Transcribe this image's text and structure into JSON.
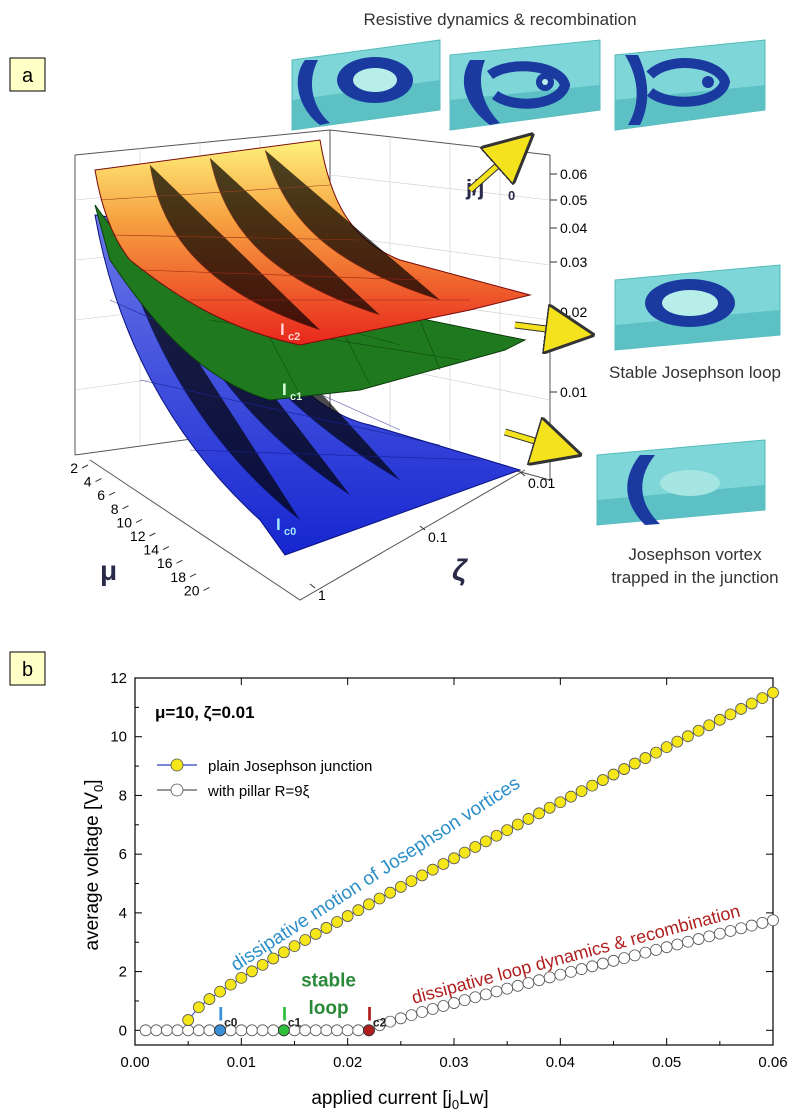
{
  "panel_a": {
    "label": "a",
    "caption_top": "Resistive dynamics & recombination",
    "caption_mid": "Stable Josephson loop",
    "caption_bottom_1": "Josephson vortex",
    "caption_bottom_2": "trapped in the junction",
    "surface_labels": {
      "c2": "I",
      "c2_sub": "c2",
      "c1": "I",
      "c1_sub": "c1",
      "c0": "I",
      "c0_sub": "c0"
    },
    "z_axis_label": "j/j",
    "z_axis_sub": "0",
    "mu_label": "μ",
    "zeta_label": "ζ",
    "z_ticks": [
      "0.06",
      "0.05",
      "0.04",
      "0.03",
      "0.02",
      "0.01"
    ],
    "mu_ticks": [
      "2",
      "4",
      "6",
      "8",
      "10",
      "12",
      "14",
      "16",
      "18",
      "20"
    ],
    "zeta_ticks": [
      "0.01",
      "0.1",
      "1"
    ],
    "surfaces": [
      {
        "name": "Ic2",
        "color": "#e8261c"
      },
      {
        "name": "Ic1",
        "color": "#1f7a1f"
      },
      {
        "name": "Ic0",
        "color": "#1f2fd6"
      }
    ]
  },
  "panel_b": {
    "label": "b",
    "chart_data": {
      "type": "scatter",
      "annotation_params": "μ=10, ζ=0.01",
      "xlabel": "applied current [j",
      "xlabel_sub": "0",
      "xlabel_end": "Lw]",
      "ylabel": "average voltage [V",
      "ylabel_sub": "0",
      "ylabel_end": "]",
      "xlim": [
        0.0,
        0.06
      ],
      "ylim": [
        -0.5,
        12
      ],
      "x_ticks": [
        0.0,
        0.01,
        0.02,
        0.03,
        0.04,
        0.05,
        0.06
      ],
      "x_tick_labels": [
        "0.00",
        "0.01",
        "0.02",
        "0.03",
        "0.04",
        "0.05",
        "0.06"
      ],
      "y_ticks": [
        0,
        2,
        4,
        6,
        8,
        10,
        12
      ],
      "y_tick_labels": [
        "0",
        "2",
        "4",
        "6",
        "8",
        "10",
        "12"
      ],
      "legend_placement": "top-left",
      "series": [
        {
          "name": "plain Josephson junction",
          "marker_color": "#f5e61a",
          "line_color": "#2a3fbf",
          "x_start": 0.005,
          "x_end": 0.06,
          "step": 0.001,
          "y_at_start": 0.35,
          "y_at_end": 11.5
        },
        {
          "name": "with pillar R=9ξ",
          "marker_color": "#ffffff",
          "line_color": "#333333",
          "zero_x_start": 0.001,
          "zero_x_end": 0.022,
          "x_start": 0.023,
          "x_end": 0.06,
          "step": 0.001,
          "y_at_end": 3.75
        }
      ],
      "annotations": {
        "text_josephson": "dissipative motion of Josephson vortices",
        "text_loop": "dissipative loop dynamics & recombination",
        "text_stable_1": "stable",
        "text_stable_2": "loop"
      },
      "critical_points": [
        {
          "name": "Ic0",
          "label": "I",
          "sub": "c0",
          "x": 0.008,
          "y": 0,
          "color": "#3a8fd8"
        },
        {
          "name": "Ic1",
          "label": "I",
          "sub": "c1",
          "x": 0.014,
          "y": 0,
          "color": "#2fbf3a"
        },
        {
          "name": "Ic2",
          "label": "I",
          "sub": "c2",
          "x": 0.022,
          "y": 0,
          "color": "#b01e1e"
        }
      ]
    }
  }
}
